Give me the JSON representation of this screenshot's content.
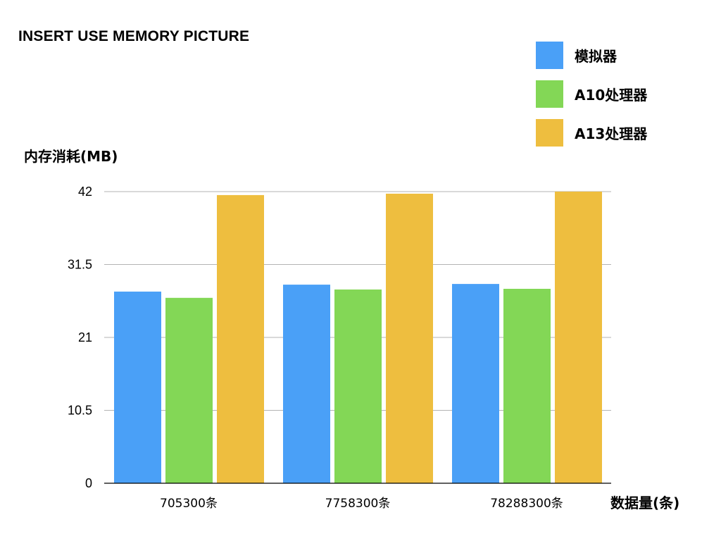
{
  "chart_data": {
    "type": "bar",
    "title": "INSERT USE MEMORY PICTURE",
    "ylabel": "内存消耗(MB)",
    "xlabel": "数据量(条)",
    "categories": [
      "705300条",
      "7758300条",
      "78288300条"
    ],
    "series": [
      {
        "name": "模拟器",
        "color": "#4aa0f7",
        "values": [
          27.6,
          28.6,
          28.7
        ]
      },
      {
        "name": "A10处理器",
        "color": "#83d756",
        "values": [
          26.7,
          27.9,
          28.0
        ]
      },
      {
        "name": "A13处理器",
        "color": "#eebe3f",
        "values": [
          41.5,
          41.7,
          42.0
        ]
      }
    ],
    "ylim": [
      0,
      42
    ],
    "yticks": [
      "0",
      "10.5",
      "21",
      "31.5",
      "42"
    ],
    "grid": true,
    "legend_position": "top-right"
  }
}
